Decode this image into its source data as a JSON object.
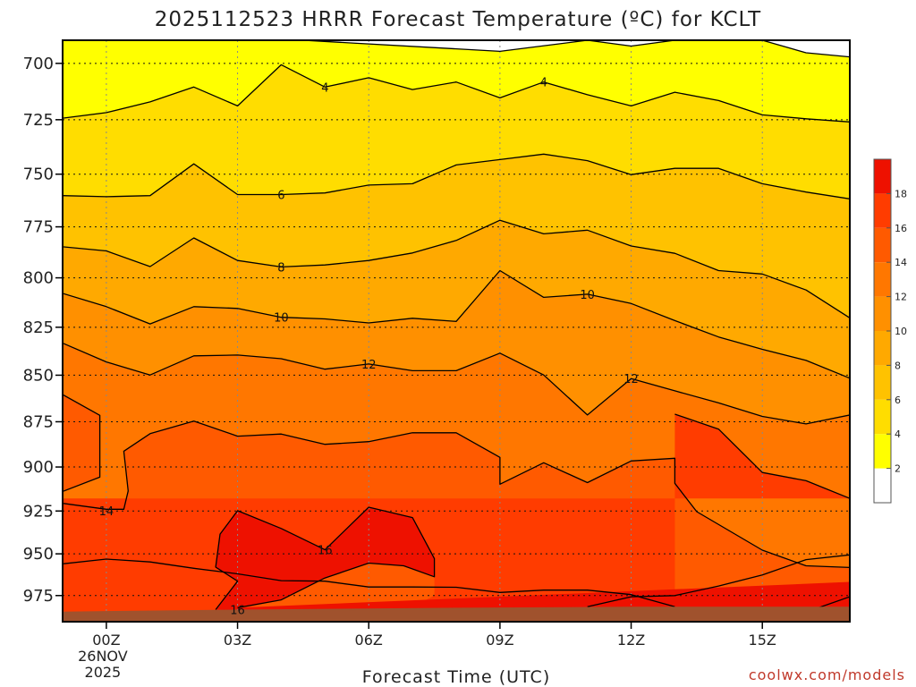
{
  "chart_data": {
    "type": "contour",
    "title": "2025112523 HRRR Forecast Temperature (ºC) for KCLT",
    "xlabel": "Forecast Time (UTC)",
    "credit": "coolwx.com/models",
    "x_range_hours": [
      -1,
      17
    ],
    "y_range_hPa": [
      690,
      991
    ],
    "y_ticks": [
      700,
      725,
      750,
      775,
      800,
      825,
      850,
      875,
      900,
      925,
      950,
      975
    ],
    "x_ticks": [
      {
        "hour": 0,
        "label": "00Z",
        "sub": [
          "26NOV",
          "2025"
        ]
      },
      {
        "hour": 3,
        "label": "03Z"
      },
      {
        "hour": 6,
        "label": "06Z"
      },
      {
        "hour": 9,
        "label": "09Z"
      },
      {
        "hour": 12,
        "label": "12Z"
      },
      {
        "hour": 15,
        "label": "15Z"
      }
    ],
    "grid": true,
    "colorbar": {
      "ticks": [
        2,
        4,
        6,
        8,
        10,
        12,
        14,
        16,
        18
      ],
      "levels": [
        {
          "from": 0,
          "to": 2,
          "color": "#ffffff"
        },
        {
          "from": 2,
          "to": 4,
          "color": "#ffff00"
        },
        {
          "from": 4,
          "to": 6,
          "color": "#ffdd00"
        },
        {
          "from": 6,
          "to": 8,
          "color": "#ffc200"
        },
        {
          "from": 8,
          "to": 10,
          "color": "#ffa900"
        },
        {
          "from": 10,
          "to": 12,
          "color": "#ff9000"
        },
        {
          "from": 12,
          "to": 14,
          "color": "#ff7700"
        },
        {
          "from": 14,
          "to": 16,
          "color": "#ff5a00"
        },
        {
          "from": 16,
          "to": 18,
          "color": "#ff3c00"
        },
        {
          "from": 18,
          "to": 20,
          "color": "#ee1100"
        }
      ]
    },
    "ground_color": "#a0522d",
    "ground_hPa": [
      [
        -1,
        984.8
      ],
      [
        3,
        983.6
      ],
      [
        8,
        982.4
      ],
      [
        12,
        981.8
      ],
      [
        17,
        981.8
      ]
    ],
    "contours": [
      {
        "value": 2,
        "points": [
          [
            -1,
            690
          ],
          [
            3,
            690
          ],
          [
            4.5,
            690
          ],
          [
            9,
            694.8
          ],
          [
            11,
            690
          ],
          [
            12,
            692.5
          ],
          [
            13,
            690
          ],
          [
            15,
            690
          ],
          [
            16,
            695.4
          ],
          [
            17,
            697.2
          ]
        ]
      },
      {
        "value": 4,
        "points": [
          [
            -1,
            724.3
          ],
          [
            0,
            721.8
          ],
          [
            1,
            717
          ],
          [
            2,
            710.4
          ],
          [
            3,
            718.8
          ],
          [
            4,
            700.6
          ],
          [
            5,
            710.4
          ],
          [
            6,
            706.3
          ],
          [
            7,
            711.5
          ],
          [
            8,
            708.2
          ],
          [
            9,
            715.2
          ],
          [
            10,
            708.2
          ],
          [
            11,
            713.8
          ],
          [
            12,
            718.8
          ],
          [
            13,
            712.7
          ],
          [
            14,
            716.4
          ],
          [
            15,
            722.8
          ],
          [
            16,
            724.6
          ],
          [
            17,
            726
          ]
        ]
      },
      {
        "value": 6,
        "points": [
          [
            -1,
            760.1
          ],
          [
            0,
            760.6
          ],
          [
            1,
            760.1
          ],
          [
            2,
            745.2
          ],
          [
            3,
            759.6
          ],
          [
            4,
            759.6
          ],
          [
            5,
            758.8
          ],
          [
            6,
            755.1
          ],
          [
            7,
            754.5
          ],
          [
            8,
            745.7
          ],
          [
            9,
            743.2
          ],
          [
            10,
            740.7
          ],
          [
            11,
            743.7
          ],
          [
            12,
            750.2
          ],
          [
            13,
            747.3
          ],
          [
            14,
            747.3
          ],
          [
            15,
            754.5
          ],
          [
            16,
            758.4
          ],
          [
            17,
            761.6
          ]
        ]
      },
      {
        "value": 8,
        "points": [
          [
            -1,
            784.7
          ],
          [
            0,
            786.7
          ],
          [
            1,
            794.4
          ],
          [
            2,
            780.4
          ],
          [
            3,
            791.4
          ],
          [
            4,
            794.6
          ],
          [
            5,
            793.6
          ],
          [
            6,
            791.4
          ],
          [
            7,
            787.7
          ],
          [
            8,
            781.6
          ],
          [
            9,
            771.8
          ],
          [
            10,
            778.4
          ],
          [
            11,
            776.6
          ],
          [
            12,
            784.3
          ],
          [
            13,
            787.9
          ],
          [
            14,
            796.4
          ],
          [
            15,
            798.1
          ],
          [
            16,
            806.1
          ],
          [
            17,
            820.2
          ]
        ]
      },
      {
        "value": 10,
        "points": [
          [
            -1,
            807.8
          ],
          [
            0,
            814.5
          ],
          [
            1,
            823.3
          ],
          [
            2,
            814.5
          ],
          [
            3,
            815.4
          ],
          [
            4,
            819.9
          ],
          [
            5,
            820.7
          ],
          [
            6,
            822.8
          ],
          [
            7,
            820.4
          ],
          [
            8,
            822
          ],
          [
            9,
            796.4
          ],
          [
            10,
            809.8
          ],
          [
            11,
            808.2
          ],
          [
            12,
            812.9
          ],
          [
            13,
            821.6
          ],
          [
            14,
            830
          ],
          [
            15,
            836.4
          ],
          [
            16,
            842.2
          ],
          [
            17,
            851.6
          ]
        ]
      },
      {
        "value": 12,
        "points": [
          [
            -1,
            833.2
          ],
          [
            0,
            843
          ],
          [
            1,
            849.9
          ],
          [
            2,
            839.8
          ],
          [
            3,
            839.4
          ],
          [
            4,
            841.3
          ],
          [
            5,
            846.8
          ],
          [
            6,
            844.1
          ],
          [
            7,
            847.6
          ],
          [
            8,
            847.6
          ],
          [
            9,
            838.4
          ],
          [
            10,
            849.9
          ],
          [
            11,
            871.3
          ],
          [
            12,
            851.8
          ],
          [
            13,
            858.3
          ],
          [
            14,
            864.8
          ],
          [
            15,
            872.1
          ],
          [
            16,
            876.2
          ],
          [
            17,
            871.3
          ]
        ]
      },
      {
        "value": 14,
        "points": [
          [
            -1,
            860.3
          ],
          [
            -0.15,
            871.5
          ],
          [
            -0.15,
            905.7
          ],
          [
            -1,
            913.8
          ]
        ]
      },
      {
        "value": 14,
        "points": [
          [
            -1,
            920.6
          ],
          [
            0,
            924
          ],
          [
            0.4,
            924
          ],
          [
            0.5,
            913.5
          ],
          [
            0.4,
            891.2
          ],
          [
            1,
            881.5
          ],
          [
            2,
            874.6
          ],
          [
            3,
            882.9
          ],
          [
            4,
            881.7
          ],
          [
            5,
            887.4
          ],
          [
            6,
            885.9
          ],
          [
            7,
            881
          ],
          [
            8,
            881
          ],
          [
            9,
            894.6
          ],
          [
            9,
            909.7
          ],
          [
            10,
            897.6
          ],
          [
            11,
            908.8
          ],
          [
            12,
            896.6
          ],
          [
            13,
            895.1
          ],
          [
            13,
            909.2
          ],
          [
            13.5,
            925.4
          ],
          [
            15,
            947.8
          ],
          [
            16,
            957.1
          ],
          [
            17,
            958.1
          ]
        ]
      },
      {
        "value": 14,
        "points": [
          [
            17,
            950.6
          ],
          [
            16,
            953.4
          ],
          [
            15,
            962.6
          ],
          [
            14,
            969.2
          ],
          [
            13,
            975
          ],
          [
            12,
            975.7
          ],
          [
            11,
            981.8
          ]
        ]
      },
      {
        "value": 14,
        "points": [
          [
            17,
            917.8
          ],
          [
            16,
            907.7
          ],
          [
            15,
            903.1
          ],
          [
            14,
            879
          ],
          [
            13,
            870.9
          ]
        ]
      },
      {
        "value": 16,
        "points": [
          [
            -1,
            955.9
          ],
          [
            0,
            953.1
          ],
          [
            1,
            954.8
          ],
          [
            2,
            958.6
          ],
          [
            3,
            961.9
          ],
          [
            4,
            966
          ],
          [
            5,
            966.3
          ],
          [
            6,
            969.8
          ],
          [
            7,
            969.8
          ],
          [
            8,
            970
          ],
          [
            9,
            973.1
          ],
          [
            10,
            971.7
          ],
          [
            11,
            971.7
          ],
          [
            12,
            974.4
          ],
          [
            13,
            981.8
          ]
        ]
      },
      {
        "value": 16,
        "points": [
          [
            2.5,
            983.6
          ],
          [
            3,
            966.3
          ],
          [
            2.5,
            957.9
          ],
          [
            2.6,
            938.4
          ],
          [
            3,
            924.8
          ],
          [
            4,
            935.1
          ],
          [
            5,
            947.6
          ],
          [
            6,
            922.8
          ],
          [
            7,
            928.8
          ],
          [
            7.5,
            952.8
          ],
          [
            7.5,
            963.7
          ],
          [
            6.8,
            957.1
          ],
          [
            6,
            955.5
          ],
          [
            5,
            964.4
          ],
          [
            4,
            977.6
          ],
          [
            3,
            982.4
          ]
        ]
      },
      {
        "value": 18,
        "points": [
          [
            16,
            985.1
          ],
          [
            17,
            975.7
          ]
        ]
      }
    ],
    "contour_labels": [
      {
        "value": 4,
        "hour": 5,
        "hPa": 710.4
      },
      {
        "value": 4,
        "hour": 10,
        "hPa": 708.2
      },
      {
        "value": 6,
        "hour": 4,
        "hPa": 759.6
      },
      {
        "value": 8,
        "hour": 4,
        "hPa": 794.6
      },
      {
        "value": 10,
        "hour": 4,
        "hPa": 819.9
      },
      {
        "value": 10,
        "hour": 11,
        "hPa": 808.2
      },
      {
        "value": 12,
        "hour": 6,
        "hPa": 844.1
      },
      {
        "value": 12,
        "hour": 12,
        "hPa": 851.8
      },
      {
        "value": 14,
        "hour": 0,
        "hPa": 924.8
      },
      {
        "value": 16,
        "hour": 5,
        "hPa": 947.6
      },
      {
        "value": 16,
        "hour": 3,
        "hPa": 983.6
      }
    ]
  }
}
